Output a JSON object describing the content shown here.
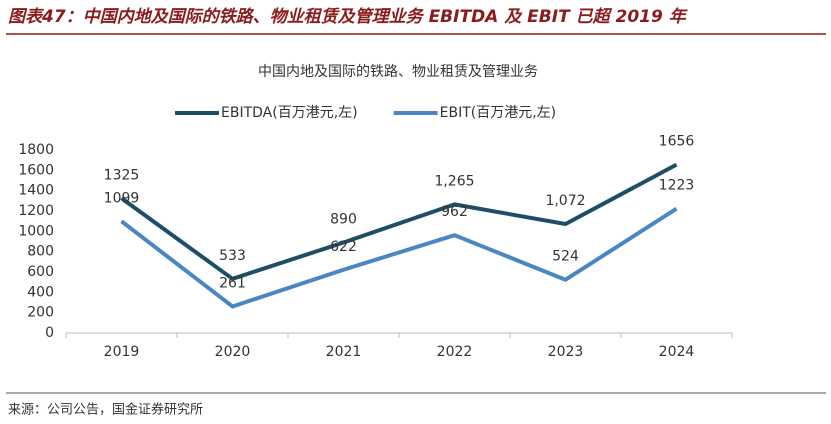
{
  "figure_title": "图表47：中国内地及国际的铁路、物业租赁及管理业务 EBITDA 及 EBIT 已超 2019 年",
  "source": "来源：公司公告，国金证券研究所",
  "chart_data": {
    "type": "line",
    "title": "中国内地及国际的铁路、物业租赁及管理业务",
    "categories": [
      "2019",
      "2020",
      "2021",
      "2022",
      "2023",
      "2024"
    ],
    "series": [
      {
        "name": "EBITDA(百万港元,左)",
        "color": "#1d4e68",
        "values": [
          1325,
          533,
          890,
          1265,
          1072,
          1656
        ],
        "value_labels": [
          "1325",
          "533",
          "890",
          "1,265",
          "1,072",
          "1656"
        ]
      },
      {
        "name": "EBIT(百万港元,左)",
        "color": "#4a86c2",
        "values": [
          1099,
          261,
          622,
          962,
          524,
          1223
        ]
      }
    ],
    "ylim": [
      0,
      1800
    ],
    "yticks": [
      0,
      200,
      400,
      600,
      800,
      1000,
      1200,
      1400,
      1600,
      1800
    ],
    "grid": false,
    "legend": "top"
  }
}
